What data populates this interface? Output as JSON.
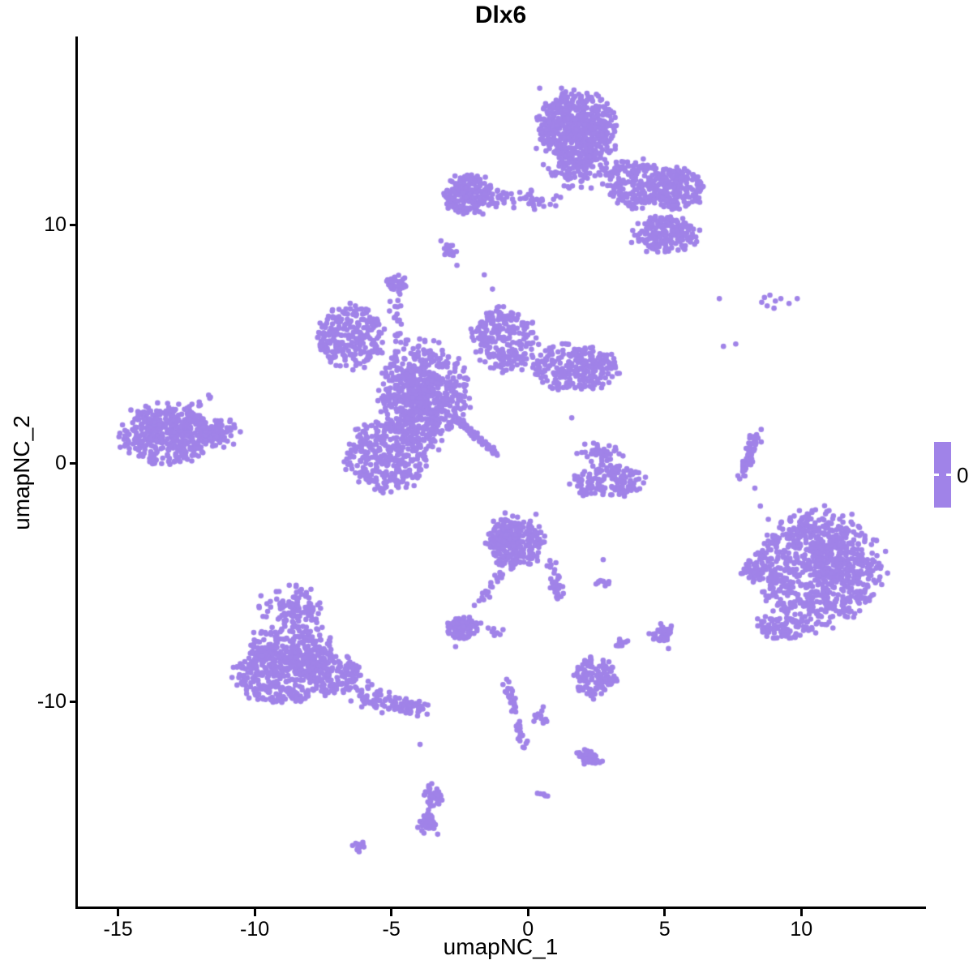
{
  "chart_data": {
    "type": "scatter",
    "title": "Dlx6",
    "xlabel": "umapNC_1",
    "ylabel": "umapNC_2",
    "xlim": [
      -16.5,
      14.5
    ],
    "ylim": [
      -18.6,
      17.9
    ],
    "x_ticks": [
      -15,
      -10,
      -5,
      0,
      5,
      10
    ],
    "y_ticks": [
      10,
      0,
      -10
    ],
    "grid": false,
    "legend_position": "right",
    "point_color": "#A083E8",
    "point_radius": 3.3,
    "legend": {
      "label": "0",
      "bar_color": "#A083E8"
    },
    "clusters": [
      {
        "name": "north-core",
        "type": "disk",
        "cx": 1.8,
        "cy": 14.1,
        "rx": 1.45,
        "ry": 1.5,
        "n": 430
      },
      {
        "name": "north-core-dense",
        "type": "gauss",
        "cx": 1.7,
        "cy": 14.3,
        "rx": 1.1,
        "ry": 1.1,
        "n": 140
      },
      {
        "name": "north-core-lower",
        "type": "gauss",
        "cx": 1.9,
        "cy": 12.4,
        "rx": 1.1,
        "ry": 0.75,
        "n": 130
      },
      {
        "name": "north-right-upper",
        "type": "disk",
        "cx": 4.0,
        "cy": 11.7,
        "rx": 1.25,
        "ry": 1.05,
        "n": 200
      },
      {
        "name": "north-right-dense",
        "type": "disk",
        "cx": 5.45,
        "cy": 11.5,
        "rx": 1.0,
        "ry": 0.9,
        "n": 190
      },
      {
        "name": "north-right-lower",
        "type": "disk",
        "cx": 5.05,
        "cy": 9.6,
        "rx": 1.25,
        "ry": 0.8,
        "n": 200
      },
      {
        "name": "north-left-blob",
        "type": "disk",
        "cx": -2.2,
        "cy": 11.3,
        "rx": 0.95,
        "ry": 0.9,
        "n": 180
      },
      {
        "name": "north-band",
        "type": "line",
        "x1": -1.7,
        "y1": 11.15,
        "x2": 1.0,
        "y2": 11.0,
        "w": 0.22,
        "n": 60
      },
      {
        "name": "north-left-tail",
        "type": "gauss",
        "cx": -2.9,
        "cy": 8.9,
        "rx": 0.3,
        "ry": 0.5,
        "n": 20
      },
      {
        "name": "upper-small-blob",
        "type": "gauss",
        "cx": -4.75,
        "cy": 7.5,
        "rx": 0.4,
        "ry": 0.42,
        "n": 42
      },
      {
        "name": "central-upper-left",
        "type": "disk",
        "cx": -6.5,
        "cy": 5.3,
        "rx": 1.3,
        "ry": 1.25,
        "n": 250
      },
      {
        "name": "central-neck",
        "type": "line",
        "x1": -4.95,
        "y1": 6.9,
        "x2": -4.6,
        "y2": 5.1,
        "w": 0.15,
        "n": 20
      },
      {
        "name": "central-core",
        "type": "disk",
        "cx": -3.8,
        "cy": 2.9,
        "rx": 1.6,
        "ry": 2.2,
        "n": 420
      },
      {
        "name": "central-core-dense",
        "type": "gauss",
        "cx": -3.9,
        "cy": 2.6,
        "rx": 1.2,
        "ry": 1.6,
        "n": 260
      },
      {
        "name": "central-up-arm",
        "type": "disk",
        "cx": -0.9,
        "cy": 5.1,
        "rx": 1.15,
        "ry": 1.4,
        "n": 230
      },
      {
        "name": "central-right-arm",
        "type": "disk",
        "cx": 1.7,
        "cy": 4.0,
        "rx": 1.6,
        "ry": 1.0,
        "n": 260
      },
      {
        "name": "central-lower-left",
        "type": "disk",
        "cx": -5.2,
        "cy": 0.3,
        "rx": 1.5,
        "ry": 1.5,
        "n": 330
      },
      {
        "name": "central-diagonal-streak",
        "type": "line",
        "x1": -2.7,
        "y1": 2.0,
        "x2": -1.15,
        "y2": 0.35,
        "w": 0.07,
        "n": 55
      },
      {
        "name": "west-main",
        "type": "disk",
        "cx": -13.3,
        "cy": 1.2,
        "rx": 1.6,
        "ry": 1.3,
        "n": 320
      },
      {
        "name": "west-dense",
        "type": "gauss",
        "cx": -13.0,
        "cy": 1.3,
        "rx": 1.2,
        "ry": 0.9,
        "n": 90
      },
      {
        "name": "west-tip",
        "type": "gauss",
        "cx": -11.5,
        "cy": 1.3,
        "rx": 0.75,
        "ry": 0.5,
        "n": 100
      },
      {
        "name": "west-antenna",
        "type": "line",
        "x1": -12.5,
        "y1": 2.1,
        "x2": -11.6,
        "y2": 2.9,
        "w": 0.13,
        "n": 12
      },
      {
        "name": "mid-right-crescent",
        "type": "disk",
        "cx": 2.9,
        "cy": -0.75,
        "rx": 1.3,
        "ry": 0.7,
        "n": 160
      },
      {
        "name": "mid-right-upper",
        "type": "gauss",
        "cx": 2.7,
        "cy": 0.55,
        "rx": 0.7,
        "ry": 0.5,
        "n": 40
      },
      {
        "name": "right-thin-streak",
        "type": "line",
        "x1": 8.35,
        "y1": 1.2,
        "x2": 7.8,
        "y2": -0.55,
        "w": 0.09,
        "n": 60
      },
      {
        "name": "east-main",
        "type": "disk",
        "cx": 10.6,
        "cy": -4.5,
        "rx": 2.3,
        "ry": 2.45,
        "n": 700
      },
      {
        "name": "east-dense",
        "type": "gauss",
        "cx": 10.8,
        "cy": -4.2,
        "rx": 1.6,
        "ry": 1.7,
        "n": 160
      },
      {
        "name": "east-left-knob",
        "type": "gauss",
        "cx": 8.2,
        "cy": -4.5,
        "rx": 0.4,
        "ry": 0.55,
        "n": 40
      },
      {
        "name": "east-tail",
        "type": "disk",
        "cx": 9.3,
        "cy": -6.9,
        "rx": 1.0,
        "ry": 0.55,
        "n": 80
      },
      {
        "name": "south-center",
        "type": "disk",
        "cx": -0.45,
        "cy": -3.3,
        "rx": 1.05,
        "ry": 1.05,
        "n": 240
      },
      {
        "name": "south-center-dense",
        "type": "gauss",
        "cx": -0.6,
        "cy": -3.0,
        "rx": 0.7,
        "ry": 0.7,
        "n": 60
      },
      {
        "name": "south-center-left-tail",
        "type": "line",
        "x1": -1.0,
        "y1": -4.5,
        "x2": -1.8,
        "y2": -6.0,
        "w": 0.1,
        "n": 20
      },
      {
        "name": "south-center-right-tail",
        "type": "line",
        "x1": 0.85,
        "y1": -4.2,
        "x2": 1.1,
        "y2": -5.7,
        "w": 0.12,
        "n": 32
      },
      {
        "name": "south-dash",
        "type": "line",
        "x1": 2.6,
        "y1": -4.95,
        "x2": 3.0,
        "y2": -5.05,
        "w": 0.07,
        "n": 10
      },
      {
        "name": "south-small-dense",
        "type": "disk",
        "cx": -2.4,
        "cy": -6.9,
        "rx": 0.62,
        "ry": 0.5,
        "n": 105
      },
      {
        "name": "south-small-trail",
        "type": "line",
        "x1": -1.5,
        "y1": -6.95,
        "x2": -0.8,
        "y2": -7.3,
        "w": 0.1,
        "n": 8
      },
      {
        "name": "southwest-apex",
        "type": "gauss",
        "cx": -8.6,
        "cy": -6.1,
        "rx": 1.0,
        "ry": 0.75,
        "n": 110
      },
      {
        "name": "southwest-mid",
        "type": "disk",
        "cx": -8.7,
        "cy": -7.7,
        "rx": 1.5,
        "ry": 1.0,
        "n": 200
      },
      {
        "name": "southwest-main",
        "type": "disk",
        "cx": -9.0,
        "cy": -8.9,
        "rx": 1.75,
        "ry": 1.25,
        "n": 380
      },
      {
        "name": "southwest-right",
        "type": "disk",
        "cx": -7.1,
        "cy": -8.8,
        "rx": 0.95,
        "ry": 0.95,
        "n": 130
      },
      {
        "name": "southwest-tail",
        "type": "line",
        "x1": -6.3,
        "y1": -9.6,
        "x2": -4.3,
        "y2": -10.3,
        "w": 0.28,
        "n": 75
      },
      {
        "name": "southwest-tail-end",
        "type": "gauss",
        "cx": -4.15,
        "cy": -10.25,
        "rx": 0.4,
        "ry": 0.35,
        "n": 30
      },
      {
        "name": "southeast-small",
        "type": "disk",
        "cx": 2.45,
        "cy": -9.0,
        "rx": 0.8,
        "ry": 0.85,
        "n": 115
      },
      {
        "name": "southeast-dot-blob",
        "type": "gauss",
        "cx": 4.95,
        "cy": -7.2,
        "rx": 0.4,
        "ry": 0.45,
        "n": 45
      },
      {
        "name": "southeast-dot-blob-b",
        "type": "gauss",
        "cx": 3.4,
        "cy": -7.55,
        "rx": 0.22,
        "ry": 0.18,
        "n": 10
      },
      {
        "name": "south-vertical-streak",
        "type": "line",
        "x1": -0.8,
        "y1": -9.2,
        "x2": -0.1,
        "y2": -12.1,
        "w": 0.1,
        "n": 42
      },
      {
        "name": "south-streak-side",
        "type": "gauss",
        "cx": 0.55,
        "cy": -10.6,
        "rx": 0.3,
        "ry": 0.4,
        "n": 12
      },
      {
        "name": "deep-south-blob",
        "type": "gauss",
        "cx": 2.2,
        "cy": -12.4,
        "rx": 0.45,
        "ry": 0.3,
        "n": 42
      },
      {
        "name": "deep-south-dash",
        "type": "line",
        "x1": 0.45,
        "y1": -13.8,
        "x2": 0.7,
        "y2": -14.0,
        "w": 0.06,
        "n": 6
      },
      {
        "name": "bottom-small-upper",
        "type": "gauss",
        "cx": -3.5,
        "cy": -14.0,
        "rx": 0.3,
        "ry": 0.5,
        "n": 40
      },
      {
        "name": "bottom-small-lower",
        "type": "gauss",
        "cx": -3.6,
        "cy": -15.1,
        "rx": 0.4,
        "ry": 0.5,
        "n": 45
      },
      {
        "name": "bottom-tiny",
        "type": "gauss",
        "cx": -6.15,
        "cy": -16.1,
        "rx": 0.25,
        "ry": 0.22,
        "n": 13
      }
    ],
    "singles": [
      [
        8.65,
        6.95
      ],
      [
        8.85,
        7.05
      ],
      [
        9.05,
        6.8
      ],
      [
        9.25,
        6.9
      ],
      [
        8.75,
        6.6
      ],
      [
        9.0,
        6.5
      ],
      [
        9.85,
        6.9
      ],
      [
        9.55,
        6.7
      ],
      [
        8.55,
        6.75
      ],
      [
        7.0,
        6.9
      ],
      [
        7.6,
        5.0
      ],
      [
        7.15,
        4.9
      ],
      [
        8.5,
        -1.8
      ],
      [
        8.3,
        -1.05
      ],
      [
        -3.95,
        -11.8
      ],
      [
        -2.65,
        -7.7
      ],
      [
        -1.6,
        7.9
      ],
      [
        -1.3,
        7.3
      ],
      [
        1.6,
        1.9
      ],
      [
        2.75,
        -4.05
      ],
      [
        -2.6,
        8.3
      ]
    ]
  }
}
